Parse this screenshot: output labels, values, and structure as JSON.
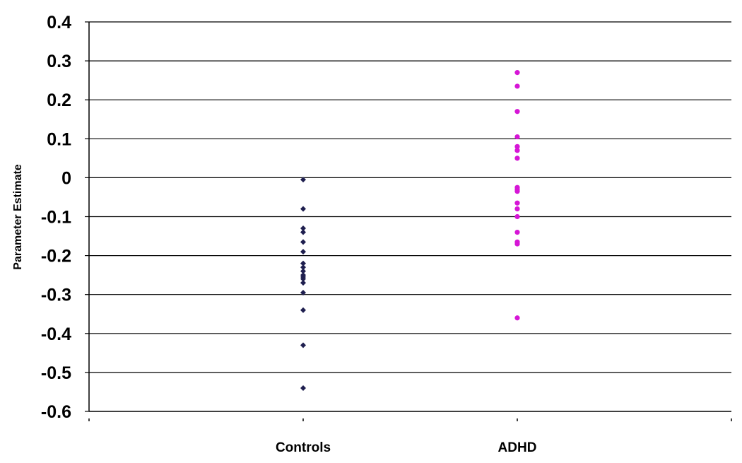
{
  "chart_data": {
    "type": "scatter",
    "title": "",
    "xlabel": "",
    "ylabel": "Parameter Estimate",
    "ylim": [
      -0.6,
      0.4
    ],
    "ytick_step": 0.1,
    "categories": [
      "Controls",
      "ADHD"
    ],
    "grid": true,
    "legend": "none",
    "series": [
      {
        "category": "Controls",
        "marker": "diamond",
        "color": "#1f1f4f",
        "values": [
          -0.005,
          -0.08,
          -0.13,
          -0.14,
          -0.165,
          -0.19,
          -0.22,
          -0.23,
          -0.24,
          -0.25,
          -0.255,
          -0.26,
          -0.27,
          -0.295,
          -0.34,
          -0.43,
          -0.54
        ]
      },
      {
        "category": "ADHD",
        "marker": "circle",
        "color": "#d616d6",
        "values": [
          0.27,
          0.235,
          0.17,
          0.105,
          0.08,
          0.07,
          0.05,
          -0.025,
          -0.03,
          -0.035,
          -0.065,
          -0.08,
          -0.1,
          -0.14,
          -0.165,
          -0.17,
          -0.36
        ]
      }
    ]
  }
}
